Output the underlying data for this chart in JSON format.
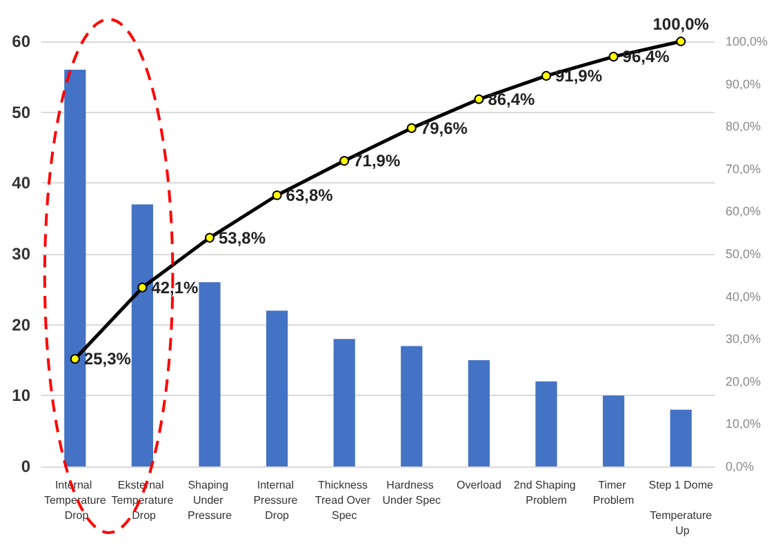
{
  "chart_data": {
    "type": "bar",
    "categories": [
      "Internal Temperature Drop",
      "Eksternal Temperature Drop",
      "Shaping Under Pressure",
      "Internal Pressure Drop",
      "Thickness Tread Over Spec",
      "Hardness Under Spec",
      "Overload",
      "2nd Shaping Problem",
      "Timer Problem",
      "Step 1 Dome Temperature Up"
    ],
    "series": [
      {
        "color": "#4472c4",
        "values": [
          56,
          37,
          26,
          22,
          18,
          17,
          15,
          12,
          10,
          8
        ]
      },
      {
        "type": "line",
        "axis": "y2",
        "color": "#000000",
        "values": [
          25.3,
          42.1,
          53.8,
          63.8,
          71.9,
          79.6,
          86.4,
          91.9,
          96.4,
          100
        ],
        "value_labels": [
          "25,3%",
          "42,1%",
          "53,8%",
          "63,8%",
          "71,9%",
          "79,6%",
          "86,4%",
          "91,9%",
          "96,4%",
          "100,0%"
        ]
      }
    ],
    "ylim": [
      0,
      60
    ],
    "yticks": [
      0,
      10,
      20,
      30,
      40,
      50,
      60
    ],
    "y2lim": [
      0,
      100
    ],
    "y2ticks": [
      {
        "value": 0,
        "label": "0,0%"
      },
      {
        "value": 10,
        "label": "10,0%"
      },
      {
        "value": 20,
        "label": "20,0%"
      },
      {
        "value": 30,
        "label": "30,0%"
      },
      {
        "value": 40,
        "label": "40,0%"
      },
      {
        "value": 50,
        "label": "50,0%"
      },
      {
        "value": 60,
        "label": "60,0%"
      },
      {
        "value": 70,
        "label": "70,0%"
      },
      {
        "value": 80,
        "label": "80,0%"
      },
      {
        "value": 90,
        "label": "90,0%"
      },
      {
        "value": 100,
        "label": "100,0%"
      }
    ],
    "grid": "y",
    "marker": "circle",
    "line_style": "solid"
  }
}
